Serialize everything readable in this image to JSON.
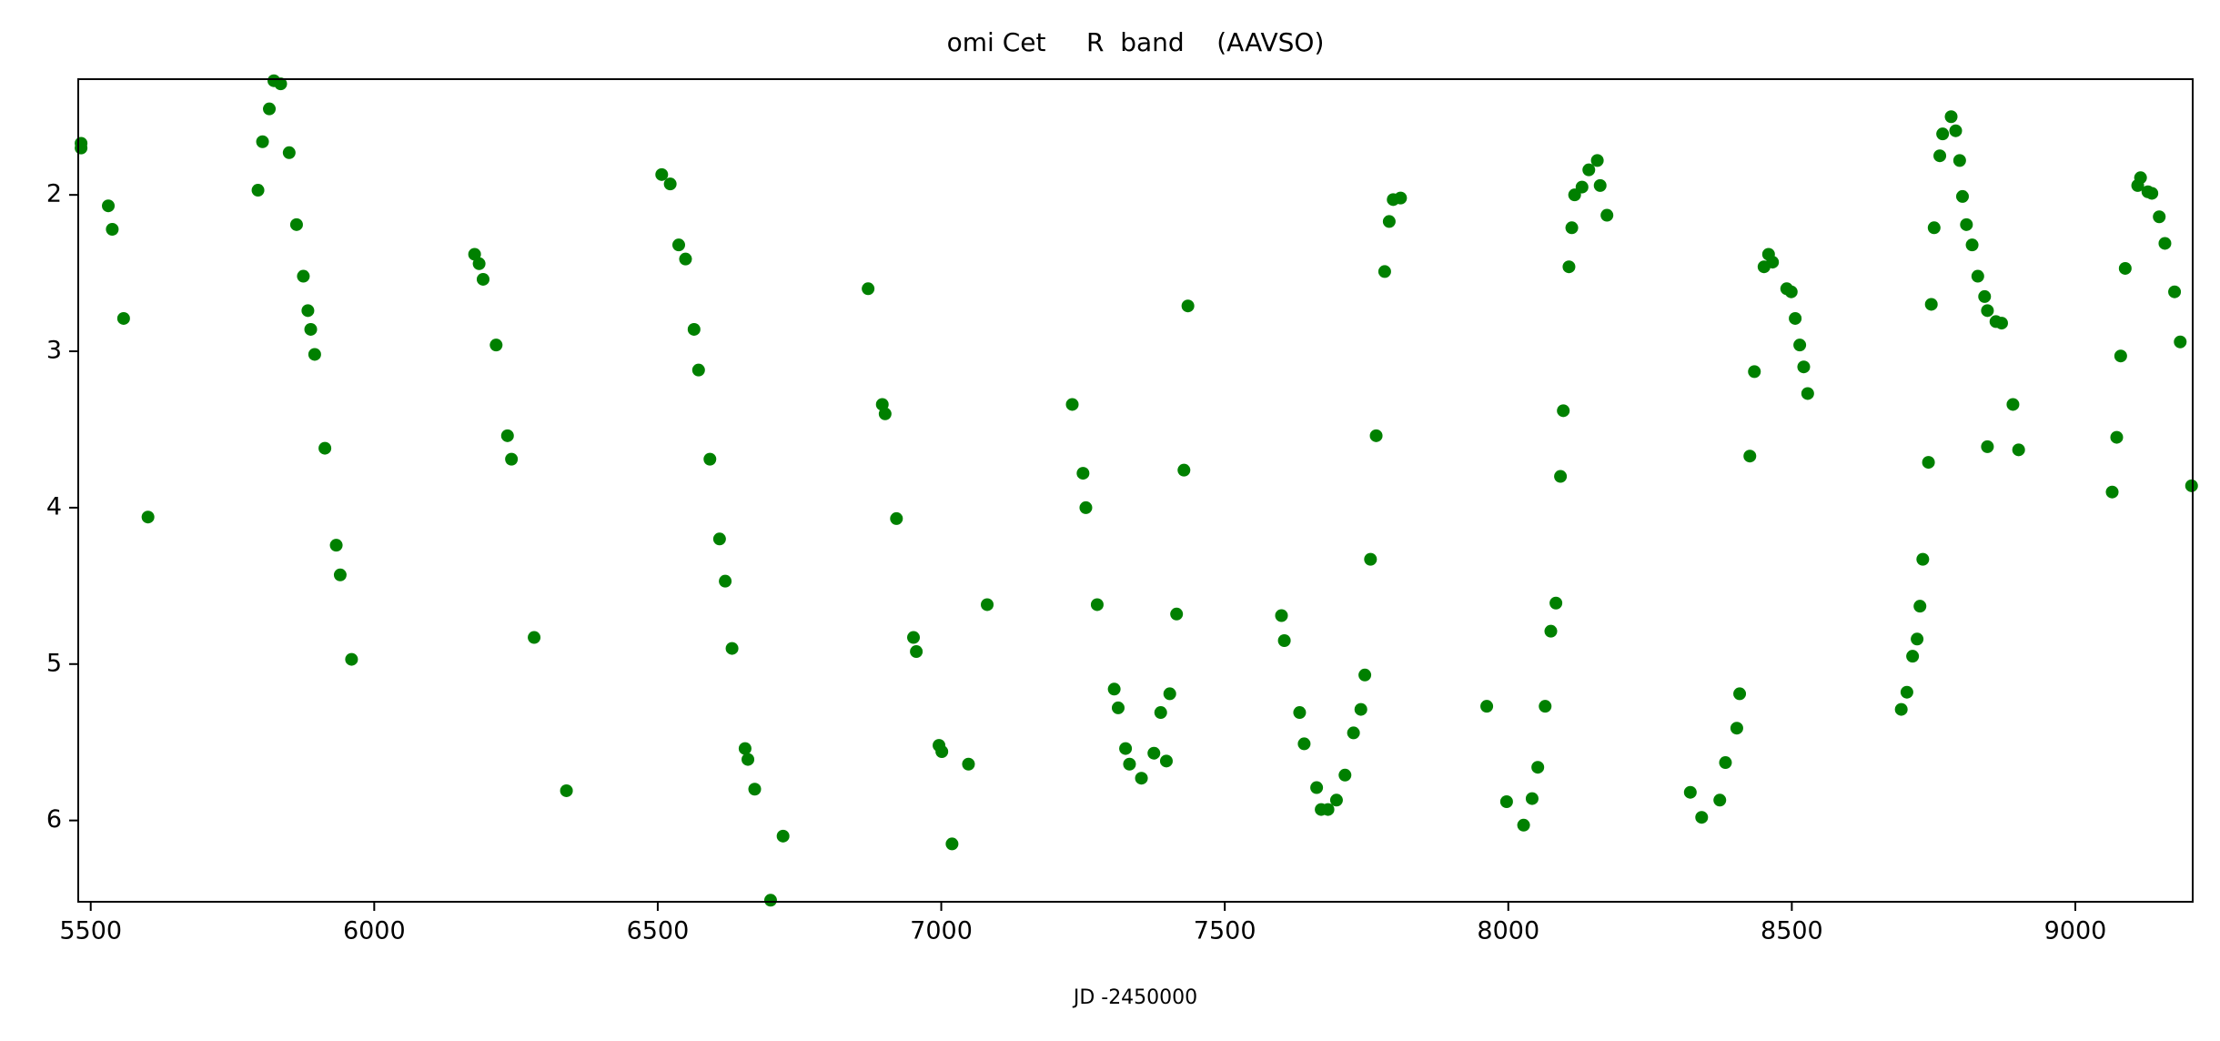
{
  "chart_data": {
    "type": "scatter",
    "title": "omi Cet     R  band    (AAVSO)",
    "x_label": "JD -2450000",
    "x": [
      5483,
      5483,
      5531,
      5538,
      5558,
      5601,
      5795,
      5803,
      5815,
      5823,
      5835,
      5850,
      5863,
      5875,
      5883,
      5888,
      5895,
      5913,
      5933,
      5940,
      5960,
      6177,
      6185,
      6192,
      6215,
      6235,
      6242,
      6282,
      6339,
      6507,
      6522,
      6537,
      6549,
      6564,
      6572,
      6592,
      6609,
      6619,
      6631,
      6654,
      6659,
      6671,
      6699,
      6721,
      6871,
      6896,
      6901,
      6921,
      6951,
      6956,
      6996,
      7001,
      7019,
      7048,
      7081,
      7231,
      7250,
      7255,
      7275,
      7305,
      7312,
      7325,
      7332,
      7353,
      7375,
      7387,
      7397,
      7403,
      7415,
      7428,
      7435,
      7600,
      7605,
      7632,
      7640,
      7662,
      7670,
      7682,
      7697,
      7712,
      7727,
      7740,
      7747,
      7757,
      7767,
      7782,
      7790,
      7797,
      7810,
      7962,
      7997,
      8027,
      8042,
      8052,
      8065,
      8075,
      8084,
      8092,
      8097,
      8107,
      8112,
      8117,
      8130,
      8142,
      8157,
      8162,
      8174,
      8321,
      8341,
      8373,
      8383,
      8403,
      8408,
      8426,
      8434,
      8451,
      8459,
      8466,
      8491,
      8499,
      8506,
      8514,
      8521,
      8528,
      8693,
      8703,
      8713,
      8721,
      8726,
      8731,
      8741,
      8746,
      8751,
      8761,
      8766,
      8781,
      8789,
      8796,
      8801,
      8808,
      8818,
      8828,
      8840,
      8845,
      8845,
      8860,
      8870,
      8890,
      8900,
      9065,
      9073,
      9080,
      9088,
      9110,
      9115,
      9128,
      9135,
      9148,
      9158,
      9175,
      9185,
      9205
    ],
    "values": [
      1.67,
      1.7,
      2.07,
      2.22,
      2.79,
      4.06,
      1.97,
      1.66,
      1.45,
      1.27,
      1.29,
      1.73,
      2.19,
      2.52,
      2.74,
      2.86,
      3.02,
      3.62,
      4.24,
      4.43,
      4.97,
      2.38,
      2.44,
      2.54,
      2.96,
      3.54,
      3.69,
      4.83,
      5.81,
      1.87,
      1.93,
      2.32,
      2.41,
      2.86,
      3.12,
      3.69,
      4.2,
      4.47,
      4.9,
      5.54,
      5.61,
      5.8,
      6.51,
      6.1,
      2.6,
      3.34,
      3.4,
      4.07,
      4.83,
      4.92,
      5.52,
      5.56,
      6.15,
      5.64,
      4.62,
      3.34,
      3.78,
      4.0,
      4.62,
      5.16,
      5.28,
      5.54,
      5.64,
      5.73,
      5.57,
      5.31,
      5.62,
      5.19,
      4.68,
      3.76,
      2.71,
      4.69,
      4.85,
      5.31,
      5.51,
      5.79,
      5.93,
      5.93,
      5.87,
      5.71,
      5.44,
      5.29,
      5.07,
      4.33,
      3.54,
      2.49,
      2.17,
      2.03,
      2.02,
      5.27,
      5.88,
      6.03,
      5.86,
      5.66,
      5.27,
      4.79,
      4.61,
      3.8,
      3.38,
      2.46,
      2.21,
      2.0,
      1.95,
      1.84,
      1.78,
      1.94,
      2.13,
      5.82,
      5.98,
      5.87,
      5.63,
      5.41,
      5.19,
      3.67,
      3.13,
      2.46,
      2.38,
      2.43,
      2.6,
      2.62,
      2.79,
      2.96,
      3.1,
      3.27,
      5.29,
      5.18,
      4.95,
      4.84,
      4.63,
      4.33,
      3.71,
      2.7,
      2.21,
      1.75,
      1.61,
      1.5,
      1.59,
      1.78,
      2.01,
      2.19,
      2.32,
      2.52,
      2.65,
      2.74,
      3.61,
      2.81,
      2.82,
      3.34,
      3.63,
      3.9,
      3.55,
      3.03,
      2.47,
      1.94,
      1.89,
      1.98,
      1.99,
      2.14,
      2.31,
      2.62,
      2.94,
      3.86
    ],
    "color": "#008000",
    "xlim": [
      5478,
      9207
    ],
    "xticks": [
      5500,
      6000,
      6500,
      7000,
      7500,
      8000,
      8500,
      9000
    ],
    "ylim": [
      1.26,
      6.52
    ],
    "yticks": [
      2,
      3,
      4,
      5,
      6
    ],
    "y_inverted": true
  }
}
